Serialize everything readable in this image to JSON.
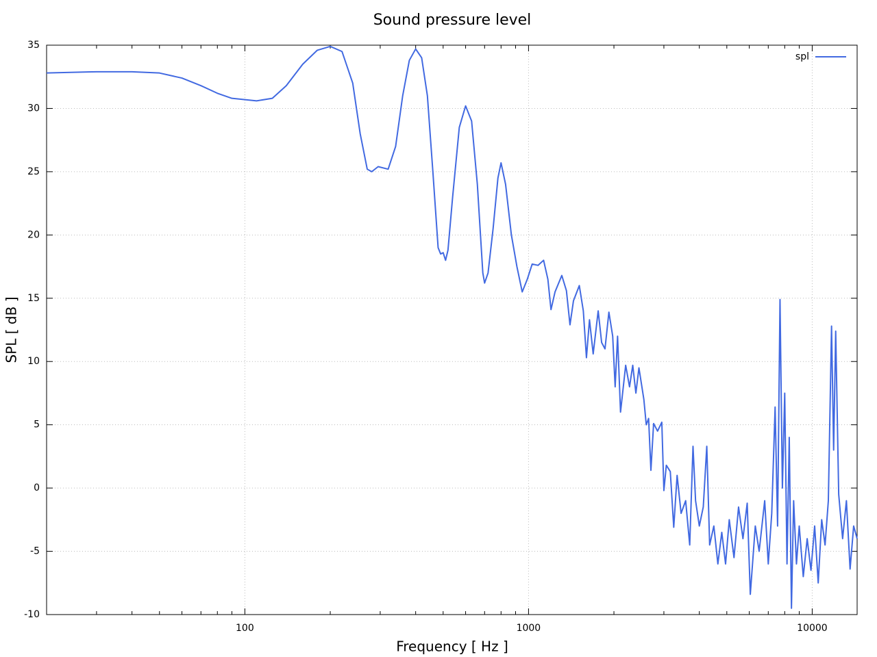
{
  "chart_data": {
    "type": "line",
    "title": "Sound pressure level",
    "xlabel": "Frequency [ Hz ]",
    "ylabel": "SPL [ dB ]",
    "xscale": "log",
    "grid": true,
    "legend": "upper right",
    "xlim": [
      20,
      14400
    ],
    "ylim": [
      -10,
      35
    ],
    "xticks": [
      100,
      1000,
      10000
    ],
    "xminorticks": [
      20,
      30,
      40,
      50,
      60,
      70,
      80,
      90,
      200,
      300,
      400,
      500,
      600,
      700,
      800,
      900,
      2000,
      3000,
      4000,
      5000,
      6000,
      7000,
      8000,
      9000
    ],
    "yticks": [
      -10,
      -5,
      0,
      5,
      10,
      15,
      20,
      25,
      30,
      35
    ],
    "x": [
      20,
      30,
      40,
      50,
      60,
      70,
      80,
      90,
      110,
      125,
      140,
      160,
      180,
      200,
      220,
      240,
      255,
      270,
      280,
      295,
      320,
      340,
      360,
      380,
      400,
      420,
      440,
      460,
      480,
      490,
      500,
      510,
      520,
      540,
      570,
      600,
      630,
      660,
      690,
      700,
      720,
      750,
      780,
      800,
      830,
      870,
      910,
      950,
      990,
      1030,
      1080,
      1130,
      1170,
      1200,
      1240,
      1310,
      1360,
      1400,
      1440,
      1510,
      1560,
      1600,
      1640,
      1690,
      1760,
      1810,
      1860,
      1920,
      1980,
      2020,
      2060,
      2110,
      2200,
      2270,
      2330,
      2390,
      2450,
      2550,
      2600,
      2650,
      2700,
      2760,
      2850,
      2950,
      3000,
      3060,
      3160,
      3250,
      3340,
      3450,
      3580,
      3700,
      3800,
      3880,
      4000,
      4130,
      4250,
      4350,
      4500,
      4650,
      4800,
      4950,
      5100,
      5300,
      5500,
      5700,
      5900,
      6050,
      6300,
      6500,
      6800,
      7000,
      7200,
      7400,
      7550,
      7700,
      7850,
      8000,
      8150,
      8300,
      8450,
      8600,
      8800,
      9000,
      9300,
      9600,
      9900,
      10200,
      10500,
      10800,
      11100,
      11400,
      11700,
      11900,
      12100,
      12400,
      12800,
      13200,
      13600,
      14000,
      14400
    ],
    "series": [
      {
        "name": "spl",
        "color": "#4169e1",
        "values": [
          32.8,
          32.9,
          32.9,
          32.8,
          32.4,
          31.8,
          31.2,
          30.8,
          30.6,
          30.8,
          31.8,
          33.5,
          34.6,
          34.9,
          34.5,
          32,
          28,
          25.2,
          25.0,
          25.4,
          25.2,
          27,
          31,
          33.8,
          34.7,
          34,
          31,
          25,
          19,
          18.5,
          18.6,
          18,
          18.8,
          23,
          28.5,
          30.2,
          29,
          24,
          17,
          16.2,
          17,
          20.5,
          24.5,
          25.7,
          24,
          20,
          17.5,
          15.5,
          16.5,
          17.7,
          17.6,
          18,
          16.5,
          14.1,
          15.5,
          16.8,
          15.6,
          12.9,
          14.8,
          16,
          14,
          10.3,
          13.3,
          10.6,
          14,
          11.5,
          11,
          13.9,
          12,
          8,
          12,
          6,
          9.7,
          8,
          9.7,
          7.5,
          9.5,
          7,
          5,
          5.5,
          1.4,
          5.1,
          4.5,
          5.2,
          -0.2,
          1.8,
          1.3,
          -3.1,
          1,
          -2,
          -1,
          -4.5,
          3.3,
          -1,
          -3,
          -1.5,
          3.3,
          -4.5,
          -3,
          -6,
          -3.5,
          -6,
          -2.5,
          -5.5,
          -1.5,
          -4,
          -1.2,
          -8.4,
          -3,
          -5,
          -1,
          -6,
          -2,
          6.4,
          -3,
          14.9,
          0,
          7.5,
          -6,
          4,
          -9.5,
          -1,
          -6,
          -3,
          -7,
          -4,
          -6.5,
          -3,
          -7.5,
          -2.5,
          -4.5,
          -1,
          12.8,
          3,
          12.4,
          -0.5,
          -4,
          -1,
          -6.4,
          -3,
          -4
        ]
      }
    ]
  }
}
